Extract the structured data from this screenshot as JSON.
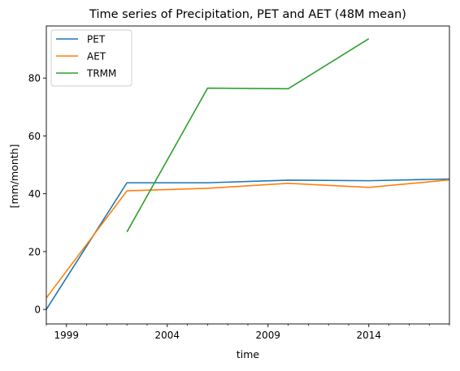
{
  "chart_data": {
    "type": "line",
    "title": "Time series of Precipitation, PET and AET (48M mean)",
    "xlabel": "time",
    "ylabel": "[mm/month]",
    "xlim": [
      1998.0,
      2018.0
    ],
    "ylim": [
      -5,
      98
    ],
    "x_ticks": [
      1999,
      2004,
      2009,
      2014
    ],
    "y_ticks": [
      0,
      20,
      40,
      60,
      80
    ],
    "grid": false,
    "legend_position": "top-left",
    "series": [
      {
        "name": "PET",
        "color": "#1f77b4",
        "x": [
          1998.0,
          2002.0,
          2006.0,
          2010.0,
          2014.0,
          2018.0
        ],
        "y": [
          0.0,
          43.8,
          43.8,
          44.7,
          44.5,
          45.1
        ]
      },
      {
        "name": "AET",
        "color": "#ff7f0e",
        "x": [
          1998.0,
          2002.0,
          2006.0,
          2010.0,
          2014.0,
          2018.0
        ],
        "y": [
          4.0,
          41.0,
          41.9,
          43.6,
          42.2,
          44.8
        ]
      },
      {
        "name": "TRMM",
        "color": "#2ca02c",
        "x": [
          2002.0,
          2006.0,
          2010.0,
          2014.0
        ],
        "y": [
          26.8,
          76.5,
          76.3,
          93.6
        ]
      }
    ]
  }
}
